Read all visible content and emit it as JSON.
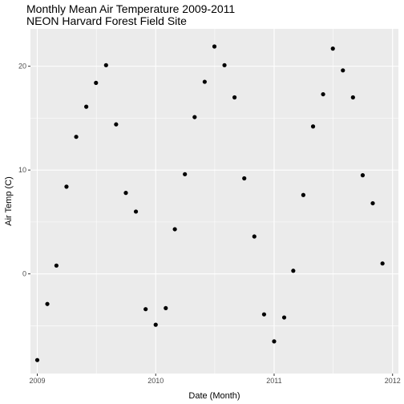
{
  "chart_data": {
    "type": "scatter",
    "title": "Monthly Mean Air Temperature 2009-2011",
    "subtitle": "NEON Harvard Forest Field Site",
    "xlabel": "Date (Month)",
    "ylabel": "Air Temp (C)",
    "x_ticks": [
      "2009",
      "2010",
      "2011",
      "2012"
    ],
    "y_ticks": [
      0,
      10,
      20
    ],
    "xlim": [
      "2008-12-11",
      "2012-01-19"
    ],
    "ylim": [
      -9.6,
      23.6
    ],
    "grid": true,
    "panel_color": "#ebebeb",
    "point_color": "#000000",
    "points": [
      {
        "x": "2009-01",
        "y": -8.3
      },
      {
        "x": "2009-02",
        "y": -2.9
      },
      {
        "x": "2009-03",
        "y": 0.8
      },
      {
        "x": "2009-04",
        "y": 8.4
      },
      {
        "x": "2009-05",
        "y": 13.2
      },
      {
        "x": "2009-06",
        "y": 16.1
      },
      {
        "x": "2009-07",
        "y": 18.4
      },
      {
        "x": "2009-08",
        "y": 20.1
      },
      {
        "x": "2009-09",
        "y": 14.4
      },
      {
        "x": "2009-10",
        "y": 7.8
      },
      {
        "x": "2009-11",
        "y": 6.0
      },
      {
        "x": "2009-12",
        "y": -3.4
      },
      {
        "x": "2010-01",
        "y": -4.9
      },
      {
        "x": "2010-02",
        "y": -3.3
      },
      {
        "x": "2010-03",
        "y": 4.3
      },
      {
        "x": "2010-04",
        "y": 9.6
      },
      {
        "x": "2010-05",
        "y": 15.1
      },
      {
        "x": "2010-06",
        "y": 18.5
      },
      {
        "x": "2010-07",
        "y": 21.9
      },
      {
        "x": "2010-08",
        "y": 20.1
      },
      {
        "x": "2010-09",
        "y": 17.0
      },
      {
        "x": "2010-10",
        "y": 9.2
      },
      {
        "x": "2010-11",
        "y": 3.6
      },
      {
        "x": "2010-12",
        "y": -3.9
      },
      {
        "x": "2011-01",
        "y": -6.5
      },
      {
        "x": "2011-02",
        "y": -4.2
      },
      {
        "x": "2011-03",
        "y": 0.3
      },
      {
        "x": "2011-04",
        "y": 7.6
      },
      {
        "x": "2011-05",
        "y": 14.2
      },
      {
        "x": "2011-06",
        "y": 17.3
      },
      {
        "x": "2011-07",
        "y": 21.7
      },
      {
        "x": "2011-08",
        "y": 19.6
      },
      {
        "x": "2011-09",
        "y": 17.0
      },
      {
        "x": "2011-10",
        "y": 9.5
      },
      {
        "x": "2011-11",
        "y": 6.8
      },
      {
        "x": "2011-12",
        "y": 1.0
      }
    ]
  }
}
